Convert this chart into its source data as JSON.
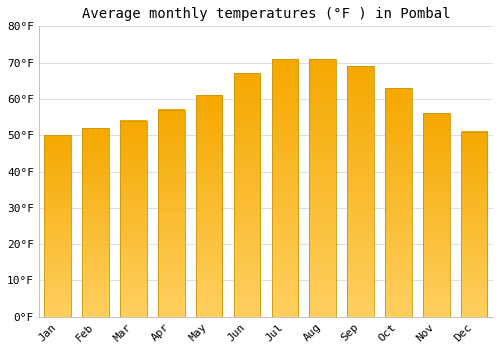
{
  "title": "Average monthly temperatures (°F ) in Pombal",
  "months": [
    "Jan",
    "Feb",
    "Mar",
    "Apr",
    "May",
    "Jun",
    "Jul",
    "Aug",
    "Sep",
    "Oct",
    "Nov",
    "Dec"
  ],
  "values": [
    50,
    52,
    54,
    57,
    61,
    67,
    71,
    71,
    69,
    63,
    56,
    51
  ],
  "bar_color_top": "#F5A800",
  "bar_color_bottom": "#FFD060",
  "ylim": [
    0,
    80
  ],
  "yticks": [
    0,
    10,
    20,
    30,
    40,
    50,
    60,
    70,
    80
  ],
  "ytick_labels": [
    "0°F",
    "10°F",
    "20°F",
    "30°F",
    "40°F",
    "50°F",
    "60°F",
    "70°F",
    "80°F"
  ],
  "bg_color": "#FFFFFF",
  "grid_color": "#DDDDDD",
  "title_fontsize": 10,
  "tick_fontsize": 8,
  "bar_edge_color": "#C8960A",
  "bar_width": 0.7,
  "figsize": [
    5.0,
    3.5
  ],
  "dpi": 100
}
